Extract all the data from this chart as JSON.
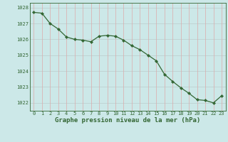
{
  "x": [
    0,
    1,
    2,
    3,
    4,
    5,
    6,
    7,
    8,
    9,
    10,
    11,
    12,
    13,
    14,
    15,
    16,
    17,
    18,
    19,
    20,
    21,
    22,
    23
  ],
  "y": [
    1027.7,
    1027.65,
    1027.0,
    1026.65,
    1026.15,
    1026.0,
    1025.95,
    1025.85,
    1026.2,
    1026.25,
    1026.2,
    1025.95,
    1025.6,
    1025.35,
    1025.0,
    1024.65,
    1023.8,
    1023.35,
    1022.95,
    1022.6,
    1022.2,
    1022.15,
    1022.0,
    1022.45
  ],
  "xlabel": "Graphe pression niveau de la mer (hPa)",
  "ylim_min": 1021.5,
  "ylim_max": 1028.3,
  "yticks": [
    1022,
    1023,
    1024,
    1025,
    1026,
    1027,
    1028
  ],
  "xticks": [
    0,
    1,
    2,
    3,
    4,
    5,
    6,
    7,
    8,
    9,
    10,
    11,
    12,
    13,
    14,
    15,
    16,
    17,
    18,
    19,
    20,
    21,
    22,
    23
  ],
  "line_color": "#336633",
  "marker_color": "#336633",
  "bg_color": "#cce8e8",
  "plot_bg": "#cce8e8",
  "hgrid_color": "#bbcccc",
  "vgrid_color": "#ddaaaa",
  "border_color": "#336633",
  "text_color": "#336633",
  "xlabel_fontsize": 6.5,
  "tick_fontsize": 5.0
}
